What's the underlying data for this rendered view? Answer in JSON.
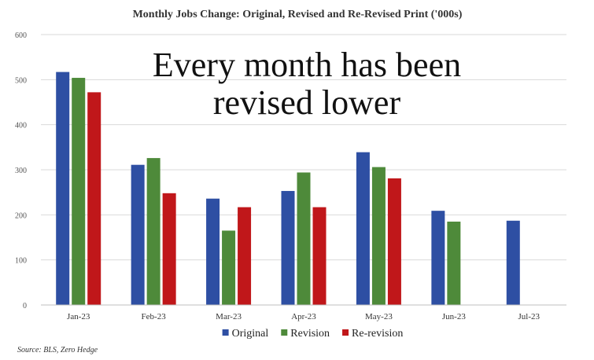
{
  "chart_data": {
    "type": "bar",
    "title": "Monthly Jobs Change: Original, Revised and Re-Revised Print ('000s)",
    "annotation": [
      "Every month has been",
      "revised lower"
    ],
    "source": "Source: BLS, Zero Hedge",
    "categories": [
      "Jan-23",
      "Feb-23",
      "Mar-23",
      "Apr-23",
      "May-23",
      "Jun-23",
      "Jul-23"
    ],
    "series": [
      {
        "name": "Original",
        "color": "#2E4FA3",
        "values": [
          517,
          311,
          236,
          253,
          339,
          209,
          187
        ]
      },
      {
        "name": "Revision",
        "color": "#4E8A3A",
        "values": [
          504,
          326,
          165,
          294,
          306,
          185,
          null
        ]
      },
      {
        "name": "Re-revision",
        "color": "#C0171A",
        "values": [
          472,
          248,
          217,
          217,
          281,
          null,
          null
        ]
      }
    ],
    "ylim": [
      0,
      600
    ],
    "yticks": [
      0,
      100,
      200,
      300,
      400,
      500,
      600
    ],
    "grid": true,
    "legend_position": "bottom"
  }
}
